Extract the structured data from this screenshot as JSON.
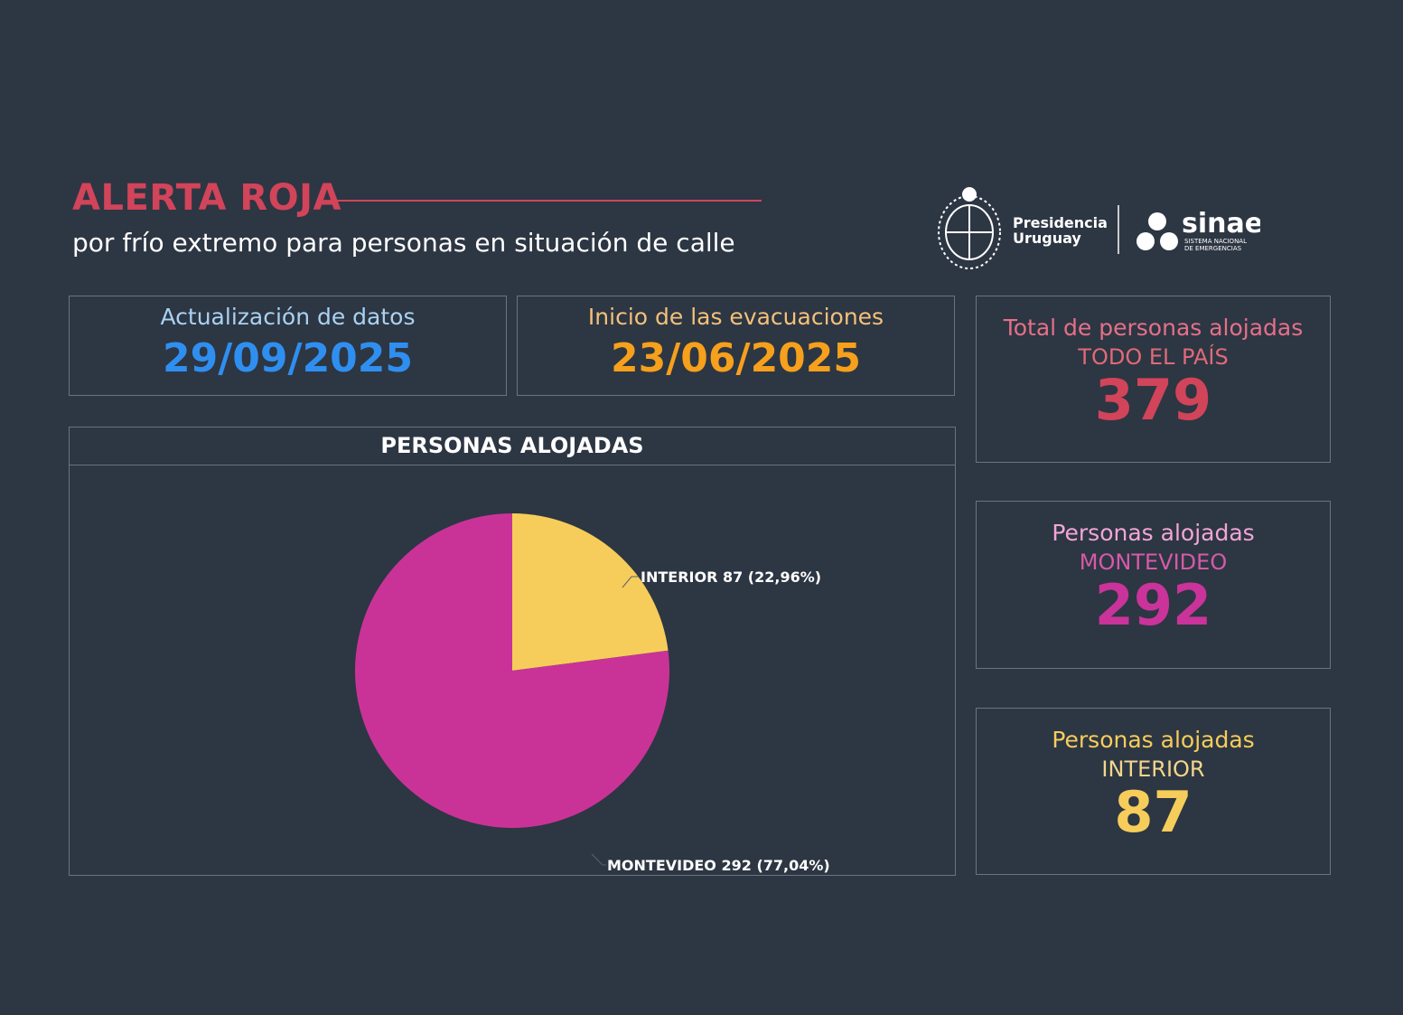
{
  "header": {
    "title": "ALERTA ROJA",
    "subtitle": "por frío extremo para personas en situación de calle"
  },
  "logos": {
    "presidencia_line1": "Presidencia",
    "presidencia_line2": "Uruguay",
    "sinae": "sinae",
    "sinae_line1": "SISTEMA NACIONAL",
    "sinae_line2": "DE EMERGENCIAS"
  },
  "cards": {
    "update": {
      "label": "Actualización de datos",
      "value": "29/09/2025",
      "label_color": "#a9d2f3",
      "value_color": "#2f8ff0"
    },
    "start": {
      "label": "Inicio de las evacuaciones",
      "value": "23/06/2025",
      "label_color": "#f4c07a",
      "value_color": "#f6a01c"
    },
    "total": {
      "label": "Total de personas alojadas",
      "sub": "TODO EL PAÍS",
      "value": "379",
      "label_color": "#e57088",
      "sub_color": "#df6a78",
      "value_color": "#d1445a"
    },
    "montevideo": {
      "label": "Personas alojadas",
      "sub": "MONTEVIDEO",
      "value": "292",
      "label_color": "#f1a6d6",
      "sub_color": "#d65aa9",
      "value_color": "#c9339a"
    },
    "interior": {
      "label": "Personas alojadas",
      "sub": "INTERIOR",
      "value": "87",
      "label_color": "#f6cd5a",
      "sub_color": "#f3d68c",
      "value_color": "#f6cd5a"
    }
  },
  "chart_data": {
    "type": "pie",
    "title": "PERSONAS ALOJADAS",
    "slices": [
      {
        "name": "INTERIOR",
        "value": 87,
        "percent": 22.96,
        "label": "INTERIOR 87 (22,96%)",
        "color": "#f6cd5a"
      },
      {
        "name": "MONTEVIDEO",
        "value": 292,
        "percent": 77.04,
        "label": "MONTEVIDEO 292 (77,04%)",
        "color": "#c93397"
      }
    ]
  }
}
